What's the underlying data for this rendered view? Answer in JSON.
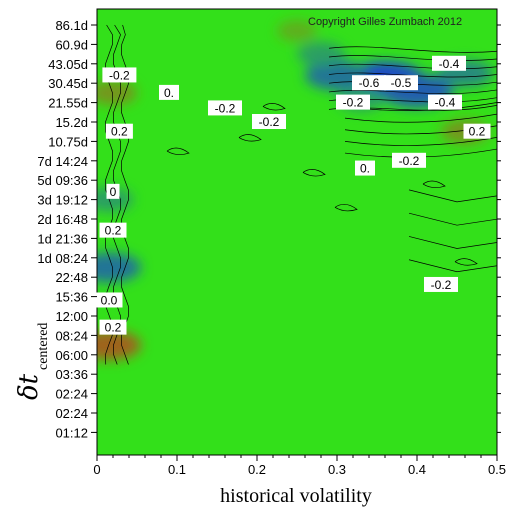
{
  "chart_data": {
    "type": "heatmap",
    "copyright": "Copyright Gilles Zumbach 2012",
    "xlabel": "historical volatility",
    "ylabel_main": "δt",
    "ylabel_sub": "centered",
    "xlim": [
      0,
      0.5
    ],
    "x_ticks": [
      "0",
      "0.1",
      "0.2",
      "0.3",
      "0.4",
      "0.5"
    ],
    "y_ticks": [
      "86.1d",
      "60.9d",
      "43.05d",
      "30.45d",
      "21.55d",
      "15.2d",
      "10.75d",
      "7d 14:24",
      "5d 09:36",
      "3d 19:12",
      "2d 16:48",
      "1d 21:36",
      "1d 08:24",
      "22:48",
      "15:36",
      "12:00",
      "08:24",
      "06:00",
      "03:36",
      "02:24",
      "02:24",
      "01:12"
    ],
    "colors": {
      "background": "#33e01a",
      "low": "#1a33e0",
      "mid": "#33e01a",
      "high": "#e01a1a"
    },
    "contour_labels": [
      {
        "text": "-0.6",
        "x": 0.34,
        "row": 3.0
      },
      {
        "text": "-0.5",
        "x": 0.38,
        "row": 3.0
      },
      {
        "text": "-0.4",
        "x": 0.44,
        "row": 2.0
      },
      {
        "text": "-0.4",
        "x": 0.435,
        "row": 4.0
      },
      {
        "text": "-0.2",
        "x": 0.32,
        "row": 4.0
      },
      {
        "text": "0.2",
        "x": 0.475,
        "row": 5.5
      },
      {
        "text": "-0.2",
        "x": 0.39,
        "row": 7.0
      },
      {
        "text": "0.",
        "x": 0.335,
        "row": 7.4
      },
      {
        "text": "0.",
        "x": 0.09,
        "row": 3.5
      },
      {
        "text": "-0.2",
        "x": 0.16,
        "row": 4.3
      },
      {
        "text": "-0.2",
        "x": 0.215,
        "row": 5.0
      },
      {
        "text": "-0.2",
        "x": 0.43,
        "row": 13.4
      },
      {
        "text": "-0.2",
        "x": 0.028,
        "row": 2.6
      },
      {
        "text": "0.2",
        "x": 0.028,
        "row": 5.5
      },
      {
        "text": "0",
        "x": 0.02,
        "row": 8.6
      },
      {
        "text": "0.2",
        "x": 0.02,
        "row": 10.6
      },
      {
        "text": "0.0",
        "x": 0.015,
        "row": 14.2
      },
      {
        "text": "0.2",
        "x": 0.02,
        "row": 15.6
      }
    ],
    "features": [
      {
        "x": 0.36,
        "row": 2.8,
        "value": -0.7
      },
      {
        "x": 0.3,
        "row": 2.6,
        "value": -0.5
      },
      {
        "x": 0.33,
        "row": 3.8,
        "value": -0.3
      },
      {
        "x": 0.4,
        "row": 3.4,
        "value": -0.6
      },
      {
        "x": 0.46,
        "row": 2.5,
        "value": -0.4
      },
      {
        "x": 0.46,
        "row": 5.5,
        "value": 0.3
      },
      {
        "x": 0.28,
        "row": 1.5,
        "value": -0.3
      },
      {
        "x": 0.02,
        "row": 3.5,
        "value": 0.3
      },
      {
        "x": 0.015,
        "row": 9.0,
        "value": -0.3
      },
      {
        "x": 0.015,
        "row": 12.5,
        "value": -0.5
      },
      {
        "x": 0.015,
        "row": 16.5,
        "value": 0.5
      },
      {
        "x": 0.25,
        "row": 0.3,
        "value": 0.2
      }
    ]
  }
}
